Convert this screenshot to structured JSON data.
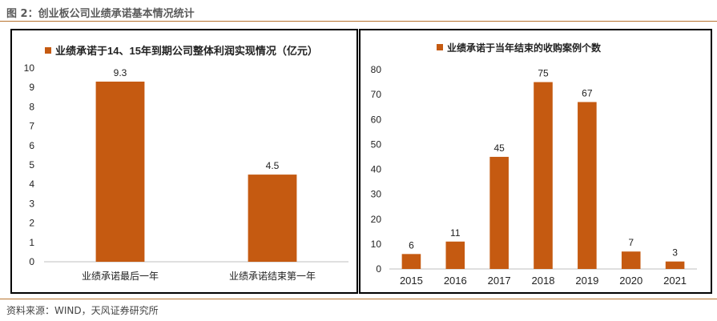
{
  "figure": {
    "title": "图 2：创业板公司业绩承诺基本情况统计",
    "source": "资料来源：WIND，天风证券研究所"
  },
  "colors": {
    "bar": "#c55a11",
    "accent_rule": "#b8742f",
    "axis": "#bfbfbf"
  },
  "chart_data": [
    {
      "type": "bar",
      "title": "业绩承诺于14、15年到期公司整体利润实现情况（亿元）",
      "legend_position": "top",
      "categories": [
        "业绩承诺最后一年",
        "业绩承诺结束第一年"
      ],
      "values": [
        9.3,
        4.5
      ],
      "value_labels": [
        "9.3",
        "4.5"
      ],
      "ylim": [
        0,
        10
      ],
      "yticks": [
        "0",
        "1",
        "2",
        "3",
        "4",
        "5",
        "6",
        "7",
        "8",
        "9",
        "10"
      ],
      "grid": false
    },
    {
      "type": "bar",
      "title": "业绩承诺于当年结束的收购案例个数",
      "legend_position": "top",
      "categories": [
        "2015",
        "2016",
        "2017",
        "2018",
        "2019",
        "2020",
        "2021"
      ],
      "values": [
        6,
        11,
        45,
        75,
        67,
        7,
        3
      ],
      "value_labels": [
        "6",
        "11",
        "45",
        "75",
        "67",
        "7",
        "3"
      ],
      "ylim": [
        0,
        80
      ],
      "yticks": [
        "0",
        "10",
        "20",
        "30",
        "40",
        "50",
        "60",
        "70",
        "80"
      ],
      "grid": false
    }
  ]
}
